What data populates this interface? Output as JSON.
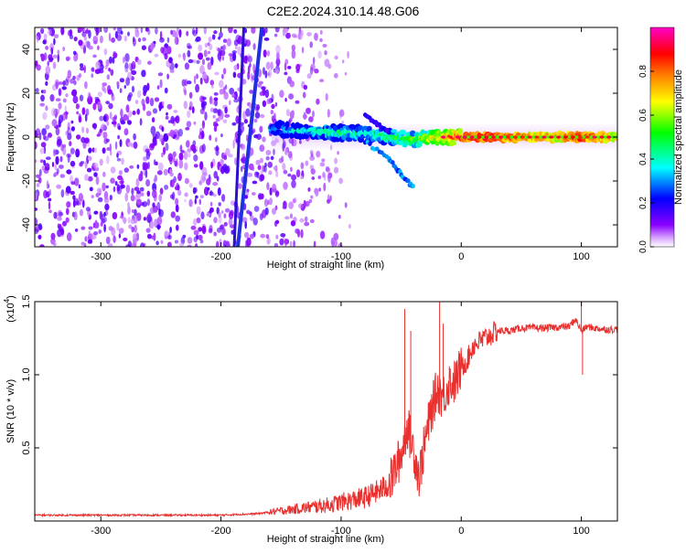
{
  "title": "C2E2.2024.310.14.48.G06",
  "chart_data": [
    {
      "type": "heatmap",
      "title": "C2E2.2024.310.14.48.G06",
      "xlabel": "Height of straight line (km)",
      "ylabel": "Frequency (Hz)",
      "xlim": [
        -355,
        130
      ],
      "ylim": [
        -50,
        50
      ],
      "x_ticks": [
        -300,
        -200,
        -100,
        0,
        100
      ],
      "y_ticks": [
        -40,
        -20,
        0,
        20,
        40
      ],
      "colorbar": {
        "label": "Normalized spectral amplitude",
        "range": [
          0,
          1
        ],
        "ticks": [
          0.0,
          0.2,
          0.4,
          0.6,
          0.8
        ],
        "tick_labels": [
          "0.0",
          "0.2",
          "0.4",
          "0.6",
          "0.8"
        ],
        "colormap": [
          "#ffffff",
          "#8a00ff",
          "#0000ff",
          "#00ffff",
          "#00ff00",
          "#ffff00",
          "#ff8000",
          "#ff0000",
          "#ff00c8"
        ]
      },
      "features": {
        "noise_region_x": [
          -355,
          -100
        ],
        "diagonal_line_1": {
          "x": [
            -186,
            -166
          ],
          "y": [
            -50,
            50
          ],
          "color": "#2030e0"
        },
        "diagonal_line_2": {
          "x": [
            -189,
            -181
          ],
          "y": [
            -50,
            50
          ],
          "color": "#3010d0"
        },
        "signal_band": {
          "x": [
            -158,
            -140,
            -120,
            -100,
            -80,
            -60,
            -40,
            -20,
            0,
            20,
            50,
            80,
            100,
            130
          ],
          "y": [
            4,
            3,
            2.5,
            2,
            1.5,
            0,
            -1,
            0,
            0,
            0,
            0,
            0,
            0,
            0
          ],
          "amplitude": [
            0.3,
            0.35,
            0.4,
            0.45,
            0.4,
            0.5,
            0.55,
            0.7,
            0.85,
            0.9,
            0.8,
            0.75,
            0.9,
            0.7
          ]
        },
        "branch_down": {
          "x": [
            -80,
            -60,
            -50,
            -40
          ],
          "y": [
            -2,
            -10,
            -17,
            -23
          ]
        },
        "branch_up": {
          "x": [
            -80,
            -70,
            -60
          ],
          "y": [
            10,
            6,
            2
          ]
        }
      }
    },
    {
      "type": "line",
      "xlabel": "Height of straight line (km)",
      "ylabel": "SNR (10 * v/v)",
      "y_multiplier": "(x10",
      "y_multiplier_exp": "4",
      "y_multiplier_close": ")",
      "xlim": [
        -355,
        130
      ],
      "ylim": [
        0,
        1.5
      ],
      "x_ticks": [
        -300,
        -200,
        -100,
        0,
        100
      ],
      "y_ticks": [
        0.5,
        1.0,
        1.5
      ],
      "y_tick_labels": [
        "0.5",
        "1.0",
        "1.5"
      ],
      "series": [
        {
          "color": "#e8302e",
          "x": [
            -355,
            -300,
            -250,
            -200,
            -170,
            -150,
            -130,
            -110,
            -100,
            -80,
            -70,
            -60,
            -55,
            -50,
            -45,
            -40,
            -35,
            -30,
            -25,
            -20,
            -15,
            -10,
            -5,
            0,
            5,
            10,
            20,
            30,
            40,
            50,
            70,
            90,
            95,
            100,
            105,
            110,
            120,
            130
          ],
          "values": [
            0.04,
            0.04,
            0.04,
            0.04,
            0.05,
            0.07,
            0.09,
            0.11,
            0.13,
            0.16,
            0.2,
            0.25,
            0.35,
            0.45,
            0.65,
            0.5,
            0.3,
            0.55,
            0.75,
            0.9,
            0.85,
            0.95,
            0.95,
            1.05,
            1.1,
            1.2,
            1.25,
            1.3,
            1.3,
            1.32,
            1.32,
            1.33,
            1.38,
            1.3,
            1.33,
            1.32,
            1.31,
            1.31
          ]
        }
      ],
      "spikes": [
        {
          "x": -47,
          "value": 1.45
        },
        {
          "x": -42,
          "value": 1.3
        },
        {
          "x": -18,
          "value": 1.5
        },
        {
          "x": -15,
          "value": 1.35
        },
        {
          "x": 100,
          "value": 1.5
        },
        {
          "x": 101,
          "value": 1.0
        }
      ]
    }
  ]
}
